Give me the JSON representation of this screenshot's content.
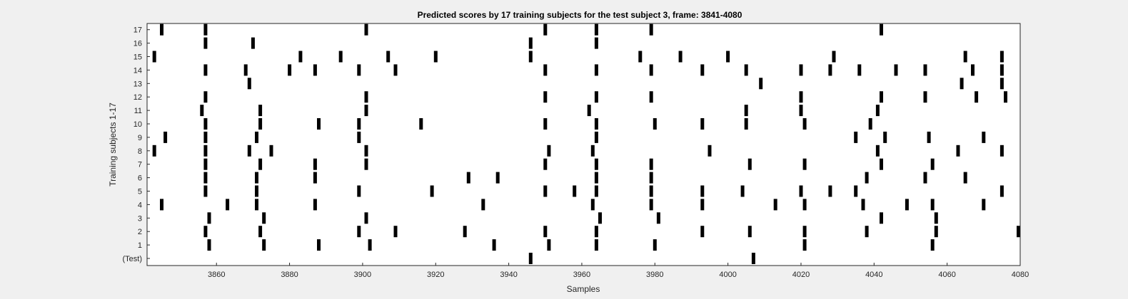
{
  "chart_data": {
    "type": "heatmap",
    "title": "Predicted scores by 17 training subjects for the test subject 3, frame: 3841-4080",
    "xlabel": "Samples",
    "ylabel": "Training subjects 1-17",
    "xlim": [
      3841,
      4080
    ],
    "x_ticks": [
      3860,
      3880,
      3900,
      3920,
      3940,
      3960,
      3980,
      4000,
      4020,
      4040,
      4060,
      4080
    ],
    "rows": [
      "(Test)",
      "1",
      "2",
      "3",
      "4",
      "5",
      "6",
      "7",
      "8",
      "9",
      "10",
      "11",
      "12",
      "13",
      "14",
      "15",
      "16",
      "17"
    ],
    "mark_color": "#000000",
    "background_color": "#ffffff",
    "grid": false,
    "events": {
      "(Test)": [
        3946,
        4007
      ],
      "1": [
        3858,
        3873,
        3888,
        3902,
        3936,
        3951,
        3964,
        3980,
        4021,
        4056
      ],
      "2": [
        3857,
        3872,
        3899,
        3909,
        3928,
        3950,
        3964,
        3993,
        4006,
        4021,
        4038,
        4057,
        4080
      ],
      "3": [
        3858,
        3873,
        3901,
        3965,
        3981,
        4042,
        4057
      ],
      "4": [
        3845,
        3863,
        3871,
        3887,
        3933,
        3963,
        3979,
        3993,
        4013,
        4021,
        4037,
        4049,
        4056,
        4070
      ],
      "5": [
        3857,
        3871,
        3899,
        3919,
        3950,
        3958,
        3964,
        3979,
        3993,
        4004,
        4020,
        4028,
        4035,
        4075
      ],
      "6": [
        3857,
        3871,
        3887,
        3929,
        3937,
        3964,
        3979,
        4038,
        4054,
        4065
      ],
      "7": [
        3857,
        3872,
        3887,
        3901,
        3950,
        3964,
        3979,
        4006,
        4021,
        4042,
        4056
      ],
      "8": [
        3843,
        3857,
        3869,
        3875,
        3901,
        3951,
        3963,
        3995,
        4041,
        4063,
        4075
      ],
      "9": [
        3846,
        3857,
        3871,
        3899,
        3964,
        4035,
        4043,
        4055,
        4070
      ],
      "10": [
        3857,
        3872,
        3888,
        3899,
        3916,
        3950,
        3964,
        3980,
        3993,
        4005,
        4021,
        4039
      ],
      "11": [
        3856,
        3872,
        3901,
        3962,
        4005,
        4020,
        4041
      ],
      "12": [
        3857,
        3901,
        3950,
        3964,
        3979,
        4020,
        4042,
        4054,
        4068,
        4076
      ],
      "13": [
        3869,
        4009,
        4064,
        4075
      ],
      "14": [
        3857,
        3868,
        3880,
        3887,
        3899,
        3909,
        3950,
        3964,
        3979,
        3993,
        4005,
        4020,
        4028,
        4036,
        4046,
        4054,
        4067,
        4075
      ],
      "15": [
        3843,
        3883,
        3894,
        3907,
        3920,
        3946,
        3976,
        3987,
        4000,
        4029,
        4065,
        4075
      ],
      "16": [
        3857,
        3870,
        3946,
        3964
      ],
      "17": [
        3845,
        3857,
        3901,
        3950,
        3964,
        3979,
        4042
      ]
    }
  }
}
